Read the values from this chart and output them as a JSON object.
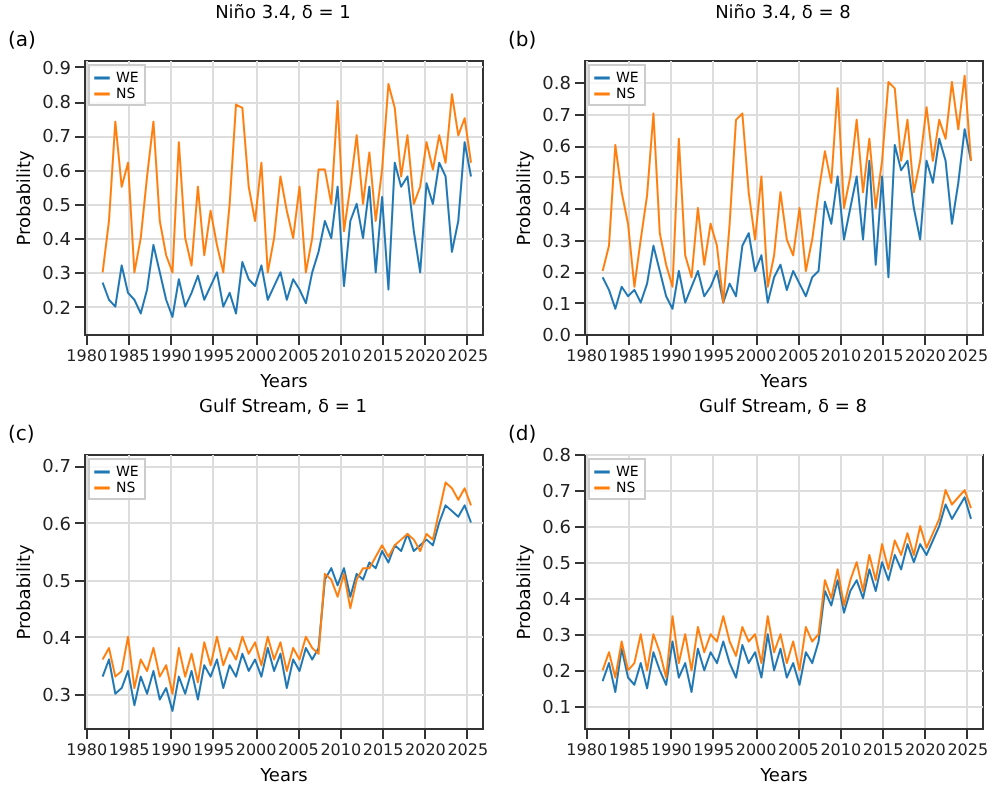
{
  "chart_data": [
    {
      "type": "line",
      "title": "Niño 3.4, δ = 1",
      "xlabel": "Years",
      "ylabel": "Probability",
      "annotations": [
        "(a)"
      ],
      "legend": "top left",
      "grid": true,
      "x": [
        1982,
        1982.75,
        1983.5,
        1984.25,
        1985,
        1985.75,
        1986.5,
        1987.25,
        1988,
        1988.75,
        1989.5,
        1990.25,
        1991,
        1991.75,
        1992.5,
        1993.25,
        1994,
        1994.75,
        1995.5,
        1996.25,
        1997,
        1997.75,
        1998.5,
        1999.25,
        2000,
        2000.75,
        2001.5,
        2002.25,
        2003,
        2003.75,
        2004.5,
        2005.25,
        2006,
        2006.75,
        2007.5,
        2008.25,
        2009,
        2009.75,
        2010.5,
        2011.25,
        2012,
        2012.75,
        2013.5,
        2014.25,
        2015,
        2015.75,
        2016.5,
        2017.25,
        2018,
        2018.75,
        2019.5,
        2020.25,
        2021,
        2021.75,
        2022.5,
        2023.25,
        2024,
        2024.75,
        2025.5
      ],
      "xlim": [
        1979.8,
        2026.8
      ],
      "xticks": [
        1980,
        1985,
        1990,
        1995,
        2000,
        2005,
        2010,
        2015,
        2020,
        2025
      ],
      "ylim": [
        0.12,
        0.92
      ],
      "yticks": [
        0.2,
        0.3,
        0.4,
        0.5,
        0.6,
        0.7,
        0.8,
        0.9
      ],
      "series": [
        {
          "name": "WE",
          "color": "#1f77b4",
          "values": [
            0.27,
            0.22,
            0.2,
            0.32,
            0.24,
            0.22,
            0.18,
            0.25,
            0.38,
            0.3,
            0.22,
            0.17,
            0.28,
            0.2,
            0.24,
            0.29,
            0.22,
            0.26,
            0.3,
            0.2,
            0.24,
            0.18,
            0.33,
            0.28,
            0.26,
            0.32,
            0.22,
            0.26,
            0.3,
            0.22,
            0.28,
            0.25,
            0.21,
            0.3,
            0.36,
            0.45,
            0.4,
            0.55,
            0.26,
            0.45,
            0.5,
            0.4,
            0.55,
            0.3,
            0.52,
            0.25,
            0.62,
            0.55,
            0.58,
            0.42,
            0.3,
            0.56,
            0.5,
            0.62,
            0.58,
            0.36,
            0.45,
            0.68,
            0.58
          ]
        },
        {
          "name": "NS",
          "color": "#ff7f0e",
          "values": [
            0.3,
            0.45,
            0.74,
            0.55,
            0.62,
            0.3,
            0.4,
            0.58,
            0.74,
            0.45,
            0.35,
            0.3,
            0.68,
            0.4,
            0.32,
            0.55,
            0.35,
            0.48,
            0.38,
            0.3,
            0.5,
            0.79,
            0.78,
            0.55,
            0.45,
            0.62,
            0.3,
            0.4,
            0.58,
            0.48,
            0.4,
            0.55,
            0.3,
            0.4,
            0.6,
            0.6,
            0.5,
            0.8,
            0.42,
            0.55,
            0.7,
            0.5,
            0.65,
            0.45,
            0.6,
            0.85,
            0.78,
            0.58,
            0.7,
            0.5,
            0.55,
            0.68,
            0.6,
            0.7,
            0.62,
            0.82,
            0.7,
            0.75,
            0.62
          ]
        }
      ]
    },
    {
      "type": "line",
      "title": "Niño 3.4, δ = 8",
      "xlabel": "Years",
      "ylabel": "Probability",
      "annotations": [
        "(b)"
      ],
      "legend": "top left",
      "grid": true,
      "x": [
        1982,
        1982.75,
        1983.5,
        1984.25,
        1985,
        1985.75,
        1986.5,
        1987.25,
        1988,
        1988.75,
        1989.5,
        1990.25,
        1991,
        1991.75,
        1992.5,
        1993.25,
        1994,
        1994.75,
        1995.5,
        1996.25,
        1997,
        1997.75,
        1998.5,
        1999.25,
        2000,
        2000.75,
        2001.5,
        2002.25,
        2003,
        2003.75,
        2004.5,
        2005.25,
        2006,
        2006.75,
        2007.5,
        2008.25,
        2009,
        2009.75,
        2010.5,
        2011.25,
        2012,
        2012.75,
        2013.5,
        2014.25,
        2015,
        2015.75,
        2016.5,
        2017.25,
        2018,
        2018.75,
        2019.5,
        2020.25,
        2021,
        2021.75,
        2022.5,
        2023.25,
        2024,
        2024.75,
        2025.5
      ],
      "xlim": [
        1979.8,
        2026.8
      ],
      "xticks": [
        1980,
        1985,
        1990,
        1995,
        2000,
        2005,
        2010,
        2015,
        2020,
        2025
      ],
      "ylim": [
        0,
        0.87
      ],
      "yticks": [
        {
          "value": 0,
          "label": "0.0"
        },
        0.1,
        0.2,
        0.3,
        0.4,
        0.5,
        0.6,
        0.7,
        0.8
      ],
      "series": [
        {
          "name": "WE",
          "color": "#1f77b4",
          "values": [
            0.18,
            0.14,
            0.08,
            0.15,
            0.12,
            0.14,
            0.1,
            0.16,
            0.28,
            0.2,
            0.12,
            0.08,
            0.2,
            0.1,
            0.15,
            0.2,
            0.12,
            0.15,
            0.2,
            0.1,
            0.16,
            0.12,
            0.28,
            0.32,
            0.2,
            0.25,
            0.1,
            0.18,
            0.22,
            0.14,
            0.2,
            0.16,
            0.12,
            0.18,
            0.2,
            0.42,
            0.35,
            0.5,
            0.3,
            0.4,
            0.5,
            0.3,
            0.55,
            0.22,
            0.5,
            0.18,
            0.6,
            0.52,
            0.55,
            0.4,
            0.3,
            0.55,
            0.48,
            0.62,
            0.55,
            0.35,
            0.48,
            0.65,
            0.55
          ]
        },
        {
          "name": "NS",
          "color": "#ff7f0e",
          "values": [
            0.2,
            0.28,
            0.6,
            0.45,
            0.35,
            0.15,
            0.3,
            0.44,
            0.7,
            0.32,
            0.22,
            0.15,
            0.62,
            0.25,
            0.18,
            0.4,
            0.22,
            0.35,
            0.28,
            0.1,
            0.35,
            0.68,
            0.7,
            0.45,
            0.3,
            0.5,
            0.15,
            0.25,
            0.45,
            0.3,
            0.25,
            0.4,
            0.2,
            0.3,
            0.45,
            0.58,
            0.48,
            0.78,
            0.4,
            0.5,
            0.68,
            0.45,
            0.62,
            0.4,
            0.55,
            0.8,
            0.78,
            0.55,
            0.68,
            0.45,
            0.55,
            0.72,
            0.55,
            0.68,
            0.62,
            0.8,
            0.65,
            0.82,
            0.55
          ]
        }
      ]
    },
    {
      "type": "line",
      "title": "Gulf Stream, δ = 1",
      "xlabel": "Years",
      "ylabel": "Probability",
      "annotations": [
        "(c)"
      ],
      "legend": "top left",
      "grid": true,
      "x": [
        1982,
        1982.75,
        1983.5,
        1984.25,
        1985,
        1985.75,
        1986.5,
        1987.25,
        1988,
        1988.75,
        1989.5,
        1990.25,
        1991,
        1991.75,
        1992.5,
        1993.25,
        1994,
        1994.75,
        1995.5,
        1996.25,
        1997,
        1997.75,
        1998.5,
        1999.25,
        2000,
        2000.75,
        2001.5,
        2002.25,
        2003,
        2003.75,
        2004.5,
        2005.25,
        2006,
        2006.75,
        2007.5,
        2008.25,
        2009,
        2009.75,
        2010.5,
        2011.25,
        2012,
        2012.75,
        2013.5,
        2014.25,
        2015,
        2015.75,
        2016.5,
        2017.25,
        2018,
        2018.75,
        2019.5,
        2020.25,
        2021,
        2021.75,
        2022.5,
        2023.25,
        2024,
        2024.75,
        2025.5
      ],
      "xlim": [
        1979.8,
        2026.8
      ],
      "xticks": [
        1980,
        1985,
        1990,
        1995,
        2000,
        2005,
        2010,
        2015,
        2020,
        2025
      ],
      "ylim": [
        0.24,
        0.72
      ],
      "yticks": [
        0.3,
        0.4,
        0.5,
        0.6,
        0.7
      ],
      "series": [
        {
          "name": "WE",
          "color": "#1f77b4",
          "values": [
            0.33,
            0.36,
            0.3,
            0.31,
            0.34,
            0.28,
            0.33,
            0.3,
            0.34,
            0.29,
            0.31,
            0.27,
            0.33,
            0.3,
            0.34,
            0.29,
            0.35,
            0.33,
            0.36,
            0.31,
            0.35,
            0.33,
            0.37,
            0.34,
            0.36,
            0.33,
            0.38,
            0.34,
            0.37,
            0.31,
            0.36,
            0.34,
            0.38,
            0.36,
            0.38,
            0.5,
            0.52,
            0.49,
            0.52,
            0.47,
            0.51,
            0.5,
            0.53,
            0.52,
            0.55,
            0.53,
            0.56,
            0.55,
            0.58,
            0.55,
            0.56,
            0.57,
            0.56,
            0.6,
            0.63,
            0.62,
            0.61,
            0.63,
            0.6
          ]
        },
        {
          "name": "NS",
          "color": "#ff7f0e",
          "values": [
            0.36,
            0.38,
            0.33,
            0.34,
            0.4,
            0.31,
            0.36,
            0.34,
            0.38,
            0.33,
            0.35,
            0.3,
            0.38,
            0.33,
            0.37,
            0.32,
            0.39,
            0.35,
            0.4,
            0.35,
            0.38,
            0.36,
            0.4,
            0.37,
            0.39,
            0.35,
            0.4,
            0.36,
            0.39,
            0.34,
            0.38,
            0.36,
            0.4,
            0.38,
            0.37,
            0.51,
            0.5,
            0.47,
            0.51,
            0.45,
            0.5,
            0.52,
            0.52,
            0.54,
            0.56,
            0.54,
            0.56,
            0.57,
            0.58,
            0.57,
            0.55,
            0.58,
            0.57,
            0.62,
            0.67,
            0.66,
            0.64,
            0.66,
            0.63
          ]
        }
      ]
    },
    {
      "type": "line",
      "title": "Gulf Stream, δ = 8",
      "xlabel": "Years",
      "ylabel": "Probability",
      "annotations": [
        "(d)"
      ],
      "legend": "top left",
      "grid": true,
      "x": [
        1982,
        1982.75,
        1983.5,
        1984.25,
        1985,
        1985.75,
        1986.5,
        1987.25,
        1988,
        1988.75,
        1989.5,
        1990.25,
        1991,
        1991.75,
        1992.5,
        1993.25,
        1994,
        1994.75,
        1995.5,
        1996.25,
        1997,
        1997.75,
        1998.5,
        1999.25,
        2000,
        2000.75,
        2001.5,
        2002.25,
        2003,
        2003.75,
        2004.5,
        2005.25,
        2006,
        2006.75,
        2007.5,
        2008.25,
        2009,
        2009.75,
        2010.5,
        2011.25,
        2012,
        2012.75,
        2013.5,
        2014.25,
        2015,
        2015.75,
        2016.5,
        2017.25,
        2018,
        2018.75,
        2019.5,
        2020.25,
        2021,
        2021.75,
        2022.5,
        2023.25,
        2024,
        2024.75,
        2025.5
      ],
      "xlim": [
        1979.8,
        2026.8
      ],
      "xticks": [
        1980,
        1985,
        1990,
        1995,
        2000,
        2005,
        2010,
        2015,
        2020,
        2025
      ],
      "ylim": [
        0.04,
        0.8
      ],
      "yticks": [
        0.1,
        0.2,
        0.3,
        0.4,
        0.5,
        0.6,
        0.7,
        0.8
      ],
      "series": [
        {
          "name": "WE",
          "color": "#1f77b4",
          "values": [
            0.17,
            0.22,
            0.14,
            0.26,
            0.18,
            0.16,
            0.22,
            0.15,
            0.25,
            0.2,
            0.16,
            0.28,
            0.18,
            0.22,
            0.14,
            0.26,
            0.2,
            0.25,
            0.22,
            0.28,
            0.22,
            0.18,
            0.27,
            0.22,
            0.25,
            0.18,
            0.3,
            0.2,
            0.26,
            0.18,
            0.22,
            0.16,
            0.25,
            0.22,
            0.28,
            0.42,
            0.38,
            0.45,
            0.36,
            0.42,
            0.45,
            0.4,
            0.48,
            0.42,
            0.5,
            0.45,
            0.52,
            0.48,
            0.55,
            0.5,
            0.55,
            0.52,
            0.56,
            0.6,
            0.66,
            0.62,
            0.65,
            0.68,
            0.62
          ]
        },
        {
          "name": "NS",
          "color": "#ff7f0e",
          "values": [
            0.2,
            0.25,
            0.18,
            0.28,
            0.2,
            0.22,
            0.3,
            0.2,
            0.3,
            0.25,
            0.18,
            0.35,
            0.22,
            0.3,
            0.2,
            0.32,
            0.25,
            0.3,
            0.28,
            0.35,
            0.28,
            0.24,
            0.32,
            0.28,
            0.3,
            0.22,
            0.35,
            0.25,
            0.3,
            0.22,
            0.28,
            0.2,
            0.32,
            0.28,
            0.3,
            0.45,
            0.4,
            0.48,
            0.38,
            0.45,
            0.5,
            0.42,
            0.52,
            0.45,
            0.55,
            0.48,
            0.56,
            0.52,
            0.58,
            0.52,
            0.6,
            0.54,
            0.58,
            0.62,
            0.7,
            0.66,
            0.68,
            0.7,
            0.65
          ]
        }
      ]
    }
  ]
}
